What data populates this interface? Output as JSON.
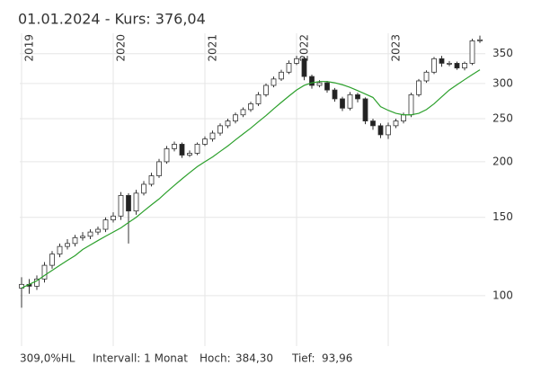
{
  "chart_data": {
    "type": "candlestick",
    "title": "01.01.2024  -  Kurs: 376,04",
    "categories": [
      "2019",
      null,
      null,
      null,
      null,
      null,
      null,
      null,
      null,
      null,
      null,
      null,
      "2020",
      null,
      null,
      null,
      null,
      null,
      null,
      null,
      null,
      null,
      null,
      null,
      "2021",
      null,
      null,
      null,
      null,
      null,
      null,
      null,
      null,
      null,
      null,
      null,
      "2022",
      null,
      null,
      null,
      null,
      null,
      null,
      null,
      null,
      null,
      null,
      null,
      "2023",
      null,
      null,
      null,
      null,
      null,
      null,
      null,
      null,
      null,
      null,
      null,
      null
    ],
    "open": [
      104,
      106,
      105,
      109,
      117,
      124,
      129,
      131,
      135,
      136,
      139,
      141,
      148,
      151,
      168,
      155,
      170,
      178,
      186,
      200,
      214,
      219,
      207,
      209,
      219,
      225,
      232,
      241,
      247,
      255,
      262,
      270,
      283,
      297,
      307,
      318,
      333,
      341,
      311,
      297,
      301,
      290,
      277,
      264,
      283,
      277,
      247,
      241,
      230,
      241,
      247,
      255,
      283,
      304,
      318,
      341,
      333,
      333,
      325,
      333,
      374
    ],
    "high": [
      110,
      109,
      111,
      119,
      126,
      131,
      134,
      137,
      139,
      141,
      143,
      150,
      154,
      171,
      170,
      173,
      181,
      189,
      203,
      217,
      222,
      221,
      212,
      221,
      228,
      235,
      244,
      250,
      258,
      265,
      273,
      287,
      300,
      311,
      322,
      338,
      346,
      345,
      314,
      305,
      304,
      293,
      280,
      287,
      286,
      279,
      250,
      244,
      245,
      250,
      258,
      286,
      307,
      321,
      344,
      346,
      337,
      336,
      336,
      378,
      384.3
    ],
    "low": [
      93.96,
      101,
      103,
      107,
      115,
      122,
      127,
      129,
      133,
      134,
      137,
      139,
      146,
      148,
      131,
      152,
      168,
      176,
      184,
      198,
      211,
      204,
      205,
      207,
      217,
      222,
      229,
      238,
      244,
      252,
      259,
      267,
      280,
      294,
      304,
      315,
      330,
      305,
      292,
      294,
      286,
      273,
      260,
      261,
      272,
      243,
      236,
      226,
      225,
      238,
      244,
      252,
      280,
      301,
      315,
      327,
      328,
      322,
      321,
      330,
      370
    ],
    "close": [
      106,
      105,
      109,
      117,
      124,
      129,
      131,
      135,
      136,
      139,
      141,
      148,
      151,
      168,
      155,
      170,
      178,
      186,
      200,
      214,
      219,
      207,
      209,
      219,
      225,
      232,
      241,
      247,
      255,
      262,
      270,
      283,
      297,
      307,
      318,
      333,
      341,
      311,
      297,
      301,
      290,
      277,
      264,
      283,
      277,
      247,
      241,
      230,
      241,
      247,
      255,
      283,
      304,
      318,
      341,
      333,
      333,
      325,
      333,
      374,
      376.04
    ],
    "up_color": "#ffffff",
    "down_color": "#222222",
    "moving_average": {
      "color": "#2ca02c",
      "values": [
        104,
        106,
        108,
        111,
        114,
        117,
        120,
        123,
        127,
        130,
        133,
        136,
        139,
        142,
        146,
        150,
        155,
        160,
        165,
        171,
        177,
        183,
        189,
        195,
        200,
        205,
        211,
        217,
        224,
        231,
        238,
        246,
        254,
        263,
        272,
        281,
        290,
        297,
        301,
        303,
        303,
        301,
        298,
        294,
        289,
        284,
        279,
        266,
        261,
        257,
        255,
        255,
        257,
        262,
        270,
        280,
        290,
        298,
        306,
        314,
        322
      ]
    },
    "log_y": true,
    "ylim": [
      77,
      389
    ],
    "yticks": [
      100,
      150,
      200,
      250,
      300,
      350
    ],
    "grid": true,
    "footer": {
      "range": "309,0%HL",
      "interval": "Intervall: 1 Monat",
      "high_label": "Hoch:",
      "high": "384,30",
      "low_label": "Tief:",
      "low": "93,96"
    }
  }
}
